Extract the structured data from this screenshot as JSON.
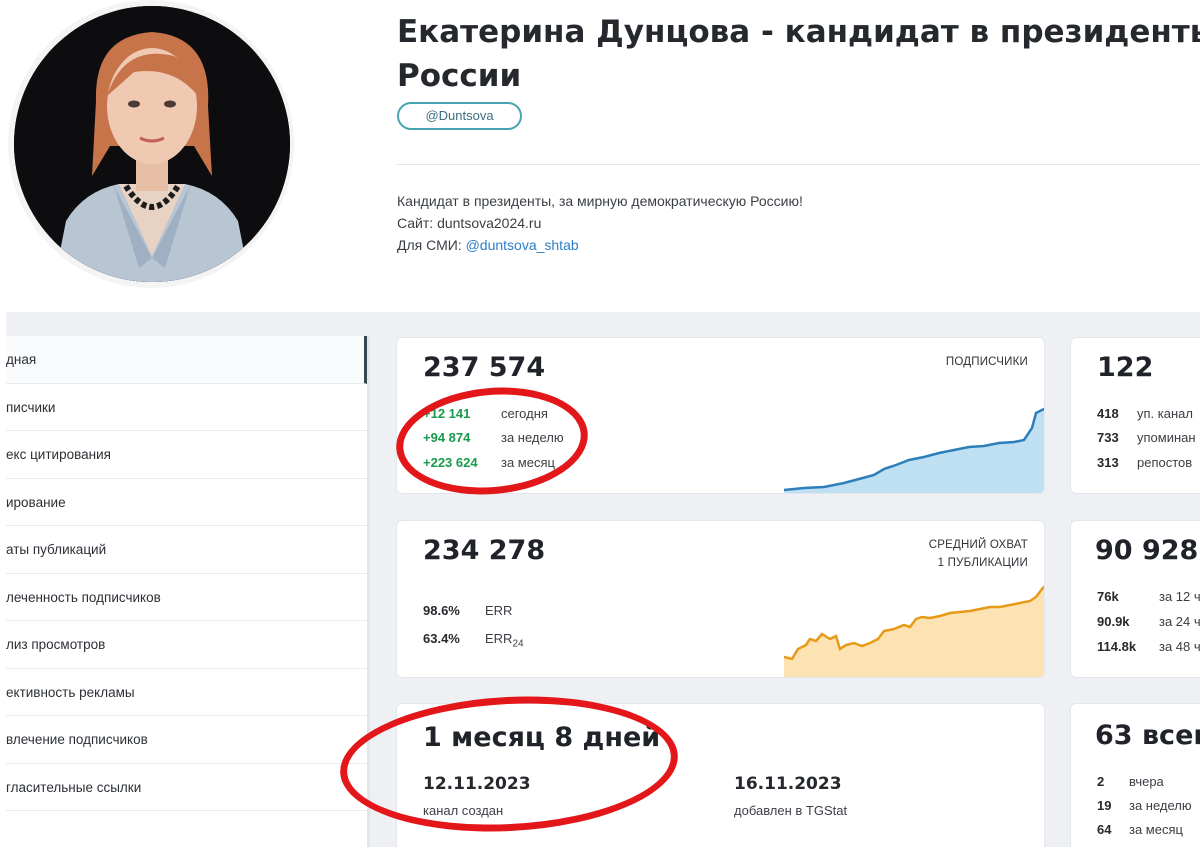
{
  "channel": {
    "title": "Екатерина Дунцова - кандидат в президенты России",
    "handle": "@Duntsova",
    "description_line1": "Кандидат в президенты, за мирную демократическую Россию!",
    "description_line2": "Сайт: duntsova2024.ru",
    "description_line3_prefix": "Для СМИ: ",
    "description_line3_link": "@duntsova_shtab"
  },
  "sidebar": {
    "items": [
      {
        "label": "дная"
      },
      {
        "label": "писчики"
      },
      {
        "label": "екс цитирования"
      },
      {
        "label": "ирование"
      },
      {
        "label": "аты публикаций"
      },
      {
        "label": "леченность подписчиков"
      },
      {
        "label": "лиз просмотров"
      },
      {
        "label": "ективность рекламы"
      },
      {
        "label": "влечение подписчиков"
      },
      {
        "label": "гласительные ссылки"
      }
    ]
  },
  "subscribers": {
    "value": "237 574",
    "caption": "ПОДПИСЧИКИ",
    "rows": [
      {
        "num": "+12 141",
        "label": "сегодня"
      },
      {
        "num": "+94 874",
        "label": "за неделю"
      },
      {
        "num": "+223 624",
        "label": "за месяц"
      }
    ],
    "chart_color": "#2c7fb8",
    "chart_fill": "#bfe0f2"
  },
  "reach": {
    "value": "234 278",
    "caption_line1": "СРЕДНИЙ ОХВАТ",
    "caption_line2": "1 ПУБЛИКАЦИИ",
    "rows": [
      {
        "num": "98.6%",
        "label": "ERR"
      },
      {
        "num": "63.4%",
        "label": "ERR",
        "sub": "24"
      }
    ],
    "chart_color": "#e89a16",
    "chart_fill": "#fde3b3"
  },
  "age": {
    "value": "1 месяц 8 дней",
    "created_date": "12.11.2023",
    "created_label": "канал создан",
    "added_date": "16.11.2023",
    "added_label": "добавлен в TGStat"
  },
  "mentions": {
    "value": "122",
    "rows": [
      {
        "num": "418",
        "label": "уп. канал"
      },
      {
        "num": "733",
        "label": "упоминан"
      },
      {
        "num": "313",
        "label": "репостов"
      }
    ]
  },
  "views": {
    "value": "90 928",
    "rows": [
      {
        "num": "76k",
        "label": "за 12 ч"
      },
      {
        "num": "90.9k",
        "label": "за 24 ч"
      },
      {
        "num": "114.8k",
        "label": "за 48 ч"
      }
    ]
  },
  "posts": {
    "value": "63 всег",
    "rows": [
      {
        "num": "2",
        "label": "вчера"
      },
      {
        "num": "19",
        "label": "за неделю"
      },
      {
        "num": "64",
        "label": "за месяц"
      }
    ]
  },
  "annotation_color": "#e3161a"
}
